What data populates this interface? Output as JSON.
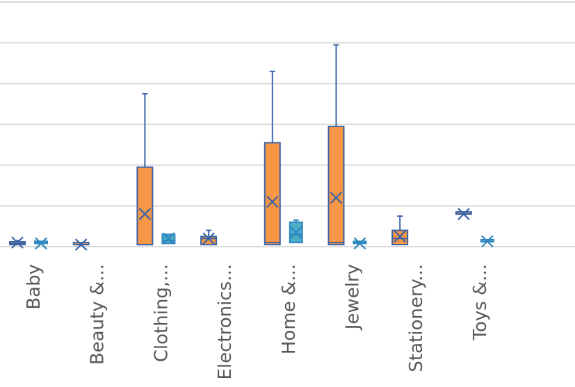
{
  "chart_data": {
    "type": "box",
    "title": "",
    "xlabel": "",
    "ylabel": "",
    "ylim": [
      0,
      6
    ],
    "grid": true,
    "categories": [
      "Baby",
      "Beauty &...",
      "Clothing,...",
      "Electronics...",
      "Home &...",
      "Jewelry",
      "Stationery...",
      "Toys &..."
    ],
    "series": [
      {
        "color": "#f79646",
        "boxes": [
          {
            "category": "Baby",
            "min": 0.05,
            "q1": 0.05,
            "median": 0.08,
            "q3": 0.12,
            "max": 0.15,
            "mean": 0.1
          },
          {
            "category": "Beauty &...",
            "min": 0.05,
            "q1": 0.05,
            "median": 0.05,
            "q3": 0.05,
            "max": 0.05,
            "mean": 0.05
          },
          {
            "category": "Clothing,...",
            "min": 0.05,
            "q1": 0.05,
            "median": 0.05,
            "q3": 1.95,
            "max": 3.75,
            "mean": 0.8
          },
          {
            "category": "Electronics...",
            "min": 0.05,
            "q1": 0.05,
            "median": 0.2,
            "q3": 0.25,
            "max": 0.4,
            "mean": 0.2
          },
          {
            "category": "Home &...",
            "min": 0.05,
            "q1": 0.05,
            "median": 0.1,
            "q3": 2.55,
            "max": 4.3,
            "mean": 1.1
          },
          {
            "category": "Jewelry",
            "min": 0.05,
            "q1": 0.05,
            "median": 0.1,
            "q3": 2.95,
            "max": 4.95,
            "mean": 1.2
          },
          {
            "category": "Stationery...",
            "min": 0.05,
            "q1": 0.05,
            "median": 0.2,
            "q3": 0.4,
            "max": 0.75,
            "mean": 0.25
          },
          {
            "category": "Toys &...",
            "min": 0.8,
            "q1": 0.8,
            "median": 0.8,
            "q3": 0.8,
            "max": 0.8,
            "mean": 0.8
          }
        ]
      },
      {
        "color": "#4bacc6",
        "boxes": [
          {
            "category": "Baby",
            "min": 0.08,
            "q1": 0.08,
            "median": 0.08,
            "q3": 0.08,
            "max": 0.08,
            "mean": 0.08
          },
          {
            "category": "Clothing,...",
            "min": 0.08,
            "q1": 0.08,
            "median": 0.15,
            "q3": 0.3,
            "max": 0.3,
            "mean": 0.2
          },
          {
            "category": "Home &...",
            "min": 0.08,
            "q1": 0.1,
            "median": 0.3,
            "q3": 0.6,
            "max": 0.65,
            "mean": 0.35
          },
          {
            "category": "Jewelry",
            "min": 0.08,
            "q1": 0.08,
            "median": 0.08,
            "q3": 0.1,
            "max": 0.1,
            "mean": 0.08
          },
          {
            "category": "Toys &...",
            "min": 0.12,
            "q1": 0.12,
            "median": 0.12,
            "q3": 0.15,
            "max": 0.15,
            "mean": 0.13
          }
        ]
      }
    ]
  }
}
